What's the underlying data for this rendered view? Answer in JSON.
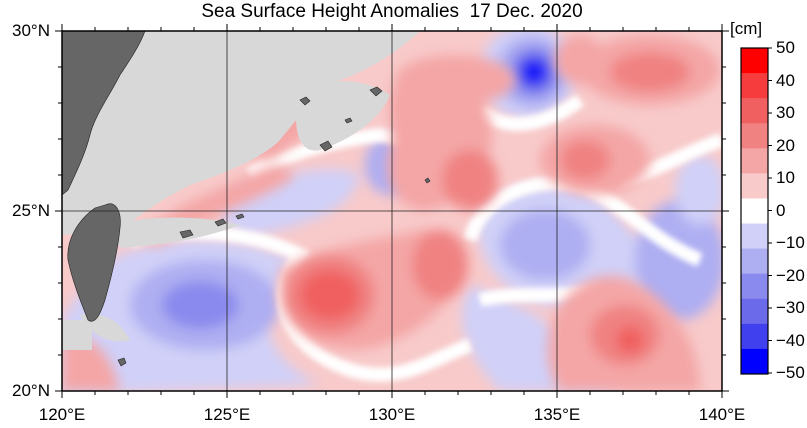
{
  "title": "Sea Surface Height Anomalies  17 Dec. 2020",
  "longitude_labels": [
    "120°E",
    "125°E",
    "130°E",
    "135°E",
    "140°E"
  ],
  "latitude_labels": [
    "30°N",
    "25°N",
    "20°N"
  ],
  "map_extent": {
    "lon_min": 120,
    "lon_max": 140,
    "lat_min": 20,
    "lat_max": 30
  },
  "colorbar": {
    "unit": "[cm]",
    "tick_labels": [
      "50",
      "40",
      "30",
      "20",
      "10",
      "0",
      "−10",
      "−20",
      "−30",
      "−40",
      "−50"
    ],
    "colors": [
      "#ff0000",
      "#f63c3c",
      "#f06060",
      "#f08282",
      "#f4a6a6",
      "#f8caca",
      "#ffffff",
      "#d0d0f8",
      "#aeaef2",
      "#8a8aee",
      "#6a6aea",
      "#4040ee",
      "#0000ff"
    ],
    "land_color": "#666666",
    "missing_color": "#d8d8d8"
  }
}
